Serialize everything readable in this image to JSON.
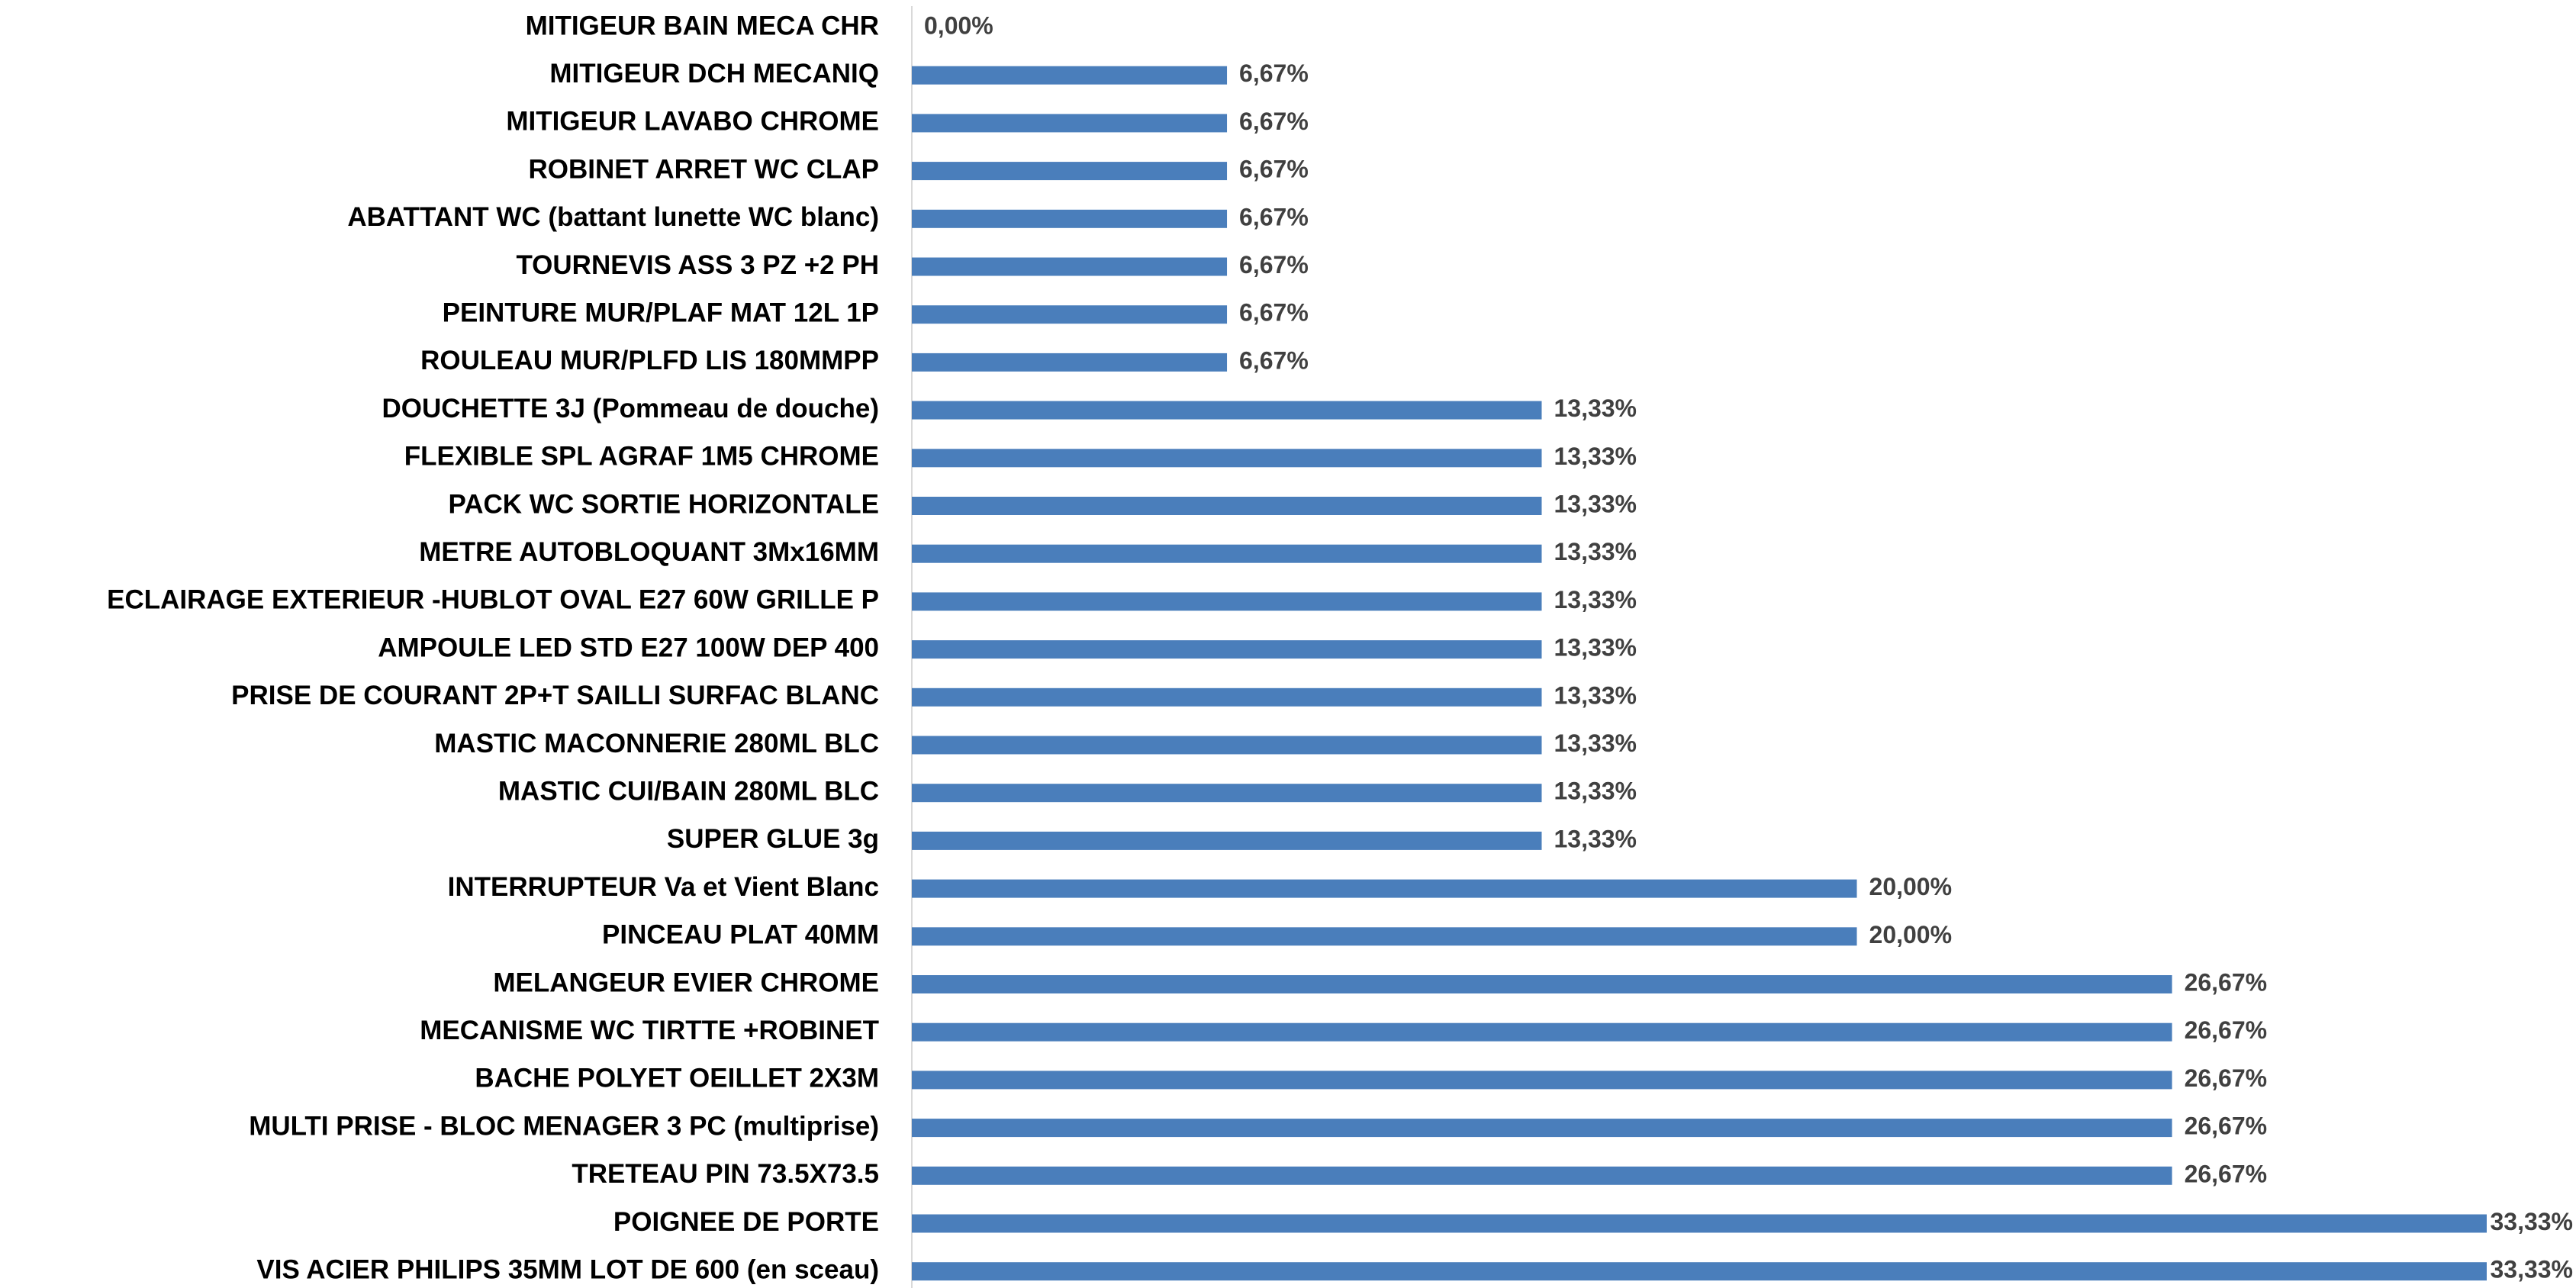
{
  "chart_data": {
    "type": "bar",
    "orientation": "horizontal",
    "color": "#4a7ebb",
    "categories": [
      "MITIGEUR BAIN MECA CHR",
      "MITIGEUR DCH MECANIQ",
      "MITIGEUR LAVABO CHROME",
      "ROBINET ARRET WC CLAP",
      "ABATTANT WC (battant lunette WC blanc)",
      "TOURNEVIS ASS 3 PZ +2 PH",
      "PEINTURE MUR/PLAF MAT 12L 1P",
      "ROULEAU MUR/PLFD LIS 180MMPP",
      "DOUCHETTE 3J (Pommeau de douche)",
      "FLEXIBLE SPL AGRAF 1M5 CHROME",
      "PACK WC SORTIE HORIZONTALE",
      "METRE AUTOBLOQUANT 3Mx16MM",
      "ECLAIRAGE EXTERIEUR -HUBLOT OVAL E27 60W GRILLE P",
      "AMPOULE LED STD E27 100W DEP 400",
      "PRISE DE COURANT 2P+T SAILLI SURFAC BLANC",
      "MASTIC MACONNERIE 280ML BLC",
      "MASTIC CUI/BAIN 280ML BLC",
      "SUPER GLUE 3g",
      "INTERRUPTEUR Va et Vient Blanc",
      "PINCEAU PLAT 40MM",
      "MELANGEUR EVIER CHROME",
      "MECANISME WC TIRTTE +ROBINET",
      "BACHE POLYET OEILLET 2X3M",
      "MULTI PRISE - BLOC MENAGER 3 PC (multiprise)",
      "TRETEAU PIN 73.5X73.5",
      "POIGNEE DE PORTE",
      "VIS ACIER PHILIPS 35MM LOT DE 600 (en sceau)"
    ],
    "values": [
      0,
      6.67,
      6.67,
      6.67,
      6.67,
      6.67,
      6.67,
      6.67,
      13.33,
      13.33,
      13.33,
      13.33,
      13.33,
      13.33,
      13.33,
      13.33,
      13.33,
      13.33,
      20,
      20,
      26.67,
      26.67,
      26.67,
      26.67,
      26.67,
      33.33,
      33.33
    ],
    "value_labels": [
      "0,00%",
      "6,67%",
      "6,67%",
      "6,67%",
      "6,67%",
      "6,67%",
      "6,67%",
      "6,67%",
      "13,33%",
      "13,33%",
      "13,33%",
      "13,33%",
      "13,33%",
      "13,33%",
      "13,33%",
      "13,33%",
      "13,33%",
      "13,33%",
      "20,00%",
      "20,00%",
      "26,67%",
      "26,67%",
      "26,67%",
      "26,67%",
      "26,67%",
      "33,33%",
      "33,33%"
    ]
  }
}
